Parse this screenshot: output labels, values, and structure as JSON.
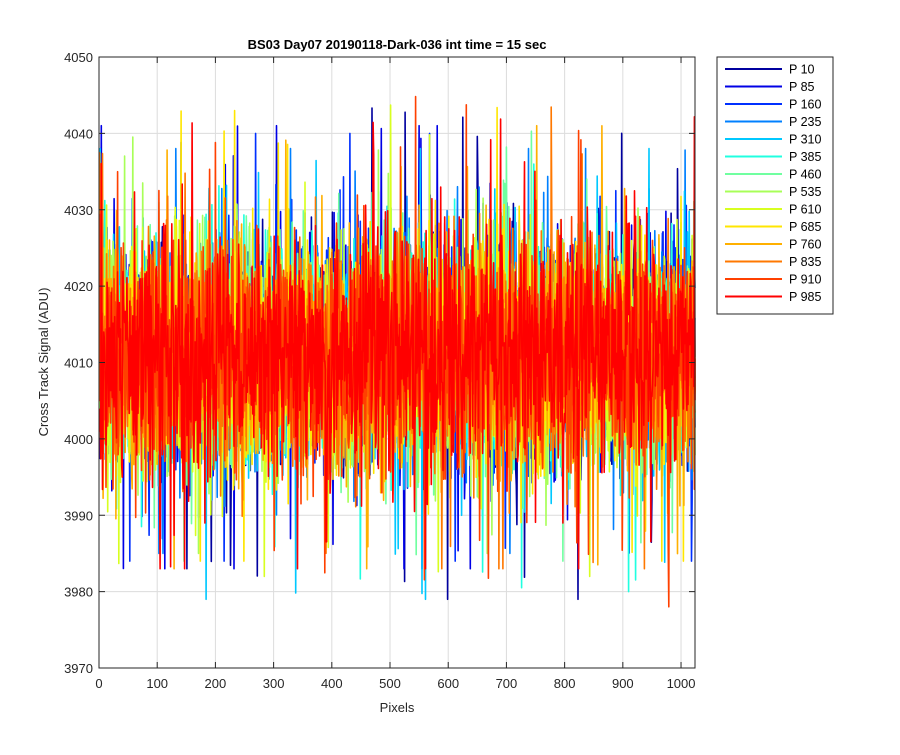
{
  "chart_data": {
    "type": "line",
    "title": "BS03 Day07 20190118-Dark-036 int time = 15 sec",
    "xlabel": "Pixels",
    "ylabel": "Cross Track Signal (ADU)",
    "xlim": [
      0,
      1024
    ],
    "ylim": [
      3970,
      4050
    ],
    "xticks": [
      0,
      100,
      200,
      300,
      400,
      500,
      600,
      700,
      800,
      900,
      1000
    ],
    "yticks": [
      3970,
      3980,
      3990,
      4000,
      4010,
      4020,
      4030,
      4040,
      4050
    ],
    "grid": true,
    "legend_position": "outside-top-right",
    "n_pixels": 1024,
    "series": [
      {
        "name": "P 10",
        "color": "#00009f",
        "mean": 4011,
        "min": 3979,
        "max": 4044
      },
      {
        "name": "P 85",
        "color": "#0000e6",
        "mean": 4011,
        "min": 3983,
        "max": 4041
      },
      {
        "name": "P 160",
        "color": "#0030ff",
        "mean": 4011,
        "min": 3984,
        "max": 4040
      },
      {
        "name": "P 235",
        "color": "#0080ff",
        "mean": 4011,
        "min": 3985,
        "max": 4038
      },
      {
        "name": "P 310",
        "color": "#00c8ff",
        "mean": 4011,
        "min": 3979,
        "max": 4038
      },
      {
        "name": "P 385",
        "color": "#20ffe0",
        "mean": 4011,
        "min": 3980,
        "max": 4040
      },
      {
        "name": "P 460",
        "color": "#70ffa0",
        "mean": 4011,
        "min": 3984,
        "max": 4042
      },
      {
        "name": "P 535",
        "color": "#a8ff58",
        "mean": 4011,
        "min": 3985,
        "max": 4040
      },
      {
        "name": "P 610",
        "color": "#d8ff20",
        "mean": 4011,
        "min": 3982,
        "max": 4045
      },
      {
        "name": "P 685",
        "color": "#ffe600",
        "mean": 4011,
        "min": 3984,
        "max": 4045
      },
      {
        "name": "P 760",
        "color": "#ffb000",
        "mean": 4011,
        "min": 3983,
        "max": 4041
      },
      {
        "name": "P 835",
        "color": "#ff7800",
        "mean": 4011,
        "min": 3983,
        "max": 4047
      },
      {
        "name": "P 910",
        "color": "#ff4000",
        "mean": 4011,
        "min": 3978,
        "max": 4047
      },
      {
        "name": "P 985",
        "color": "#ff0000",
        "mean": 4011,
        "min": 3983,
        "max": 4046
      }
    ]
  }
}
